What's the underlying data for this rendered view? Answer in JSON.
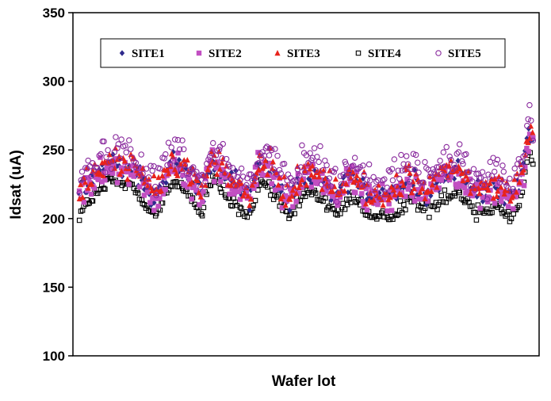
{
  "chart_data": {
    "type": "scatter",
    "title": "",
    "xlabel": "Wafer lot",
    "ylabel": "Idsat (uA)",
    "ylim": [
      100,
      350
    ],
    "yticks": [
      100,
      150,
      200,
      250,
      300,
      350
    ],
    "grid": false,
    "legend_position": "top",
    "n_lots": 300,
    "lot_profile": {
      "x": [
        0,
        8,
        20,
        35,
        50,
        62,
        72,
        80,
        88,
        100,
        112,
        118,
        125,
        138,
        150,
        160,
        170,
        180,
        192,
        205,
        218,
        230,
        240,
        250,
        262,
        275,
        285,
        292,
        296,
        300
      ],
      "center": [
        212,
        222,
        235,
        232,
        210,
        235,
        228,
        210,
        238,
        220,
        208,
        232,
        232,
        208,
        228,
        224,
        210,
        226,
        208,
        210,
        222,
        214,
        224,
        228,
        212,
        218,
        208,
        226,
        255,
        250
      ]
    },
    "series": [
      {
        "name": "SITE1",
        "marker": "diamond",
        "color": "#2e2a8c",
        "offset": 6,
        "spread": 14
      },
      {
        "name": "SITE2",
        "marker": "square",
        "color": "#c24fc2",
        "offset": 4,
        "spread": 17
      },
      {
        "name": "SITE3",
        "marker": "triangle",
        "color": "#e8231c",
        "offset": 8,
        "spread": 16
      },
      {
        "name": "SITE4",
        "marker": "open-square",
        "color": "#000000",
        "offset": -8,
        "spread": 9
      },
      {
        "name": "SITE5",
        "marker": "open-circle",
        "color": "#8a2b9e",
        "offset": 16,
        "spread": 20
      }
    ]
  }
}
